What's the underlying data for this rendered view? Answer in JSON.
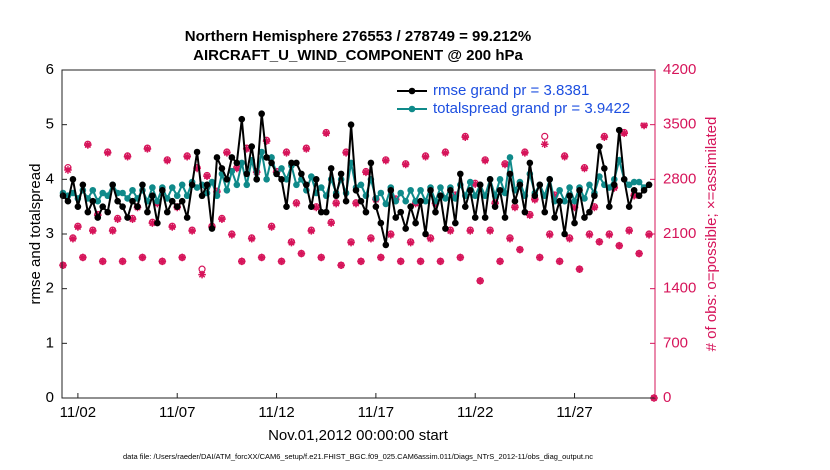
{
  "chart_data": {
    "type": "line",
    "title": "Northern Hemisphere 276553 / 278749 = 99.212%",
    "subtitle": "AIRCRAFT_U_WIND_COMPONENT @ 200 hPa",
    "xlabel": "Nov.01,2012 00:00:00 start",
    "ylabel": "rmse and totalspread",
    "y2label": "# of obs: o=possible; ×=assimilated",
    "footnote": "data file: /Users/raeder/DAI/ATM_forcXX/CAM6_setup/f.e21.FHIST_BGC.f09_025.CAM6assim.011/Diags_NTrS_2012-11/obs_diag_output.nc",
    "x": [
      1.25,
      1.5,
      1.75,
      2,
      2.25,
      2.5,
      2.75,
      3,
      3.25,
      3.5,
      3.75,
      4,
      4.25,
      4.5,
      4.75,
      5,
      5.25,
      5.5,
      5.75,
      6,
      6.25,
      6.5,
      6.75,
      7,
      7.25,
      7.5,
      7.75,
      8,
      8.25,
      8.5,
      8.75,
      9,
      9.25,
      9.5,
      9.75,
      10,
      10.25,
      10.5,
      10.75,
      11,
      11.25,
      11.5,
      11.75,
      12,
      12.25,
      12.5,
      12.75,
      13,
      13.25,
      13.5,
      13.75,
      14,
      14.25,
      14.5,
      14.75,
      15,
      15.25,
      15.5,
      15.75,
      16,
      16.25,
      16.5,
      16.75,
      17,
      17.25,
      17.5,
      17.75,
      18,
      18.25,
      18.5,
      18.75,
      19,
      19.25,
      19.5,
      19.75,
      20,
      20.25,
      20.5,
      20.75,
      21,
      21.25,
      21.5,
      21.75,
      22,
      22.25,
      22.5,
      22.75,
      23,
      23.25,
      23.5,
      23.75,
      24,
      24.25,
      24.5,
      24.75,
      25,
      25.25,
      25.5,
      25.75,
      26,
      26.25,
      26.5,
      26.75,
      27,
      27.25,
      27.5,
      27.75,
      28,
      28.25,
      28.5,
      28.75,
      29,
      29.25,
      29.5,
      29.75,
      30,
      30.25,
      30.5,
      30.75,
      31
    ],
    "xlim": [
      1.2,
      31.05
    ],
    "xticks": [
      {
        "value": 2,
        "label": "11/02"
      },
      {
        "value": 7,
        "label": "11/07"
      },
      {
        "value": 12,
        "label": "11/12"
      },
      {
        "value": 17,
        "label": "11/17"
      },
      {
        "value": 22,
        "label": "11/22"
      },
      {
        "value": 27,
        "label": "11/27"
      }
    ],
    "ylim": [
      0,
      6
    ],
    "yticks": [
      0,
      1,
      2,
      3,
      4,
      5,
      6
    ],
    "y2lim": [
      0,
      4200
    ],
    "y2ticks": [
      0,
      700,
      1400,
      2100,
      2800,
      3500,
      4200
    ],
    "legend": "top-right",
    "legend_text_color": "#1d4fe0",
    "series": [
      {
        "name": "rmse grand pr = 3.8381",
        "color": "#000000",
        "marker": "dot",
        "values": [
          3.7,
          3.6,
          4.0,
          3.5,
          3.9,
          3.4,
          3.6,
          3.3,
          3.5,
          3.4,
          3.9,
          3.6,
          3.5,
          3.3,
          3.6,
          3.5,
          3.9,
          3.4,
          3.7,
          3.2,
          3.8,
          3.4,
          3.6,
          3.5,
          3.6,
          3.3,
          3.9,
          4.5,
          3.7,
          3.9,
          3.1,
          4.4,
          4.2,
          4.0,
          4.4,
          4.3,
          5.1,
          4.1,
          4.6,
          4.0,
          5.2,
          4.4,
          4.3,
          4.1,
          4.0,
          3.5,
          4.3,
          4.3,
          4.1,
          3.9,
          3.5,
          4.0,
          3.4,
          3.4,
          4.2,
          3.7,
          4.1,
          3.6,
          5.0,
          3.8,
          3.6,
          3.4,
          4.3,
          3.5,
          3.2,
          2.8,
          3.8,
          3.3,
          3.4,
          3.1,
          3.5,
          3.2,
          3.6,
          3.0,
          3.8,
          3.4,
          3.7,
          3.1,
          3.8,
          3.2,
          4.1,
          3.5,
          3.8,
          3.3,
          3.9,
          3.3,
          4.0,
          3.5,
          3.8,
          3.3,
          4.1,
          3.6,
          3.9,
          3.4,
          4.3,
          3.7,
          3.9,
          3.4,
          4.0,
          3.3,
          3.6,
          3.0,
          3.7,
          3.2,
          3.8,
          3.3,
          3.4,
          3.7,
          4.6,
          4.2,
          3.5,
          3.9,
          4.9,
          4.0,
          3.5,
          3.8,
          3.7,
          3.8,
          3.9,
          null
        ]
      },
      {
        "name": "totalspread grand pr = 3.9422",
        "color": "#0f8a8a",
        "marker": "dot",
        "values": [
          3.75,
          3.7,
          3.75,
          3.65,
          3.8,
          3.65,
          3.8,
          3.6,
          3.75,
          3.7,
          3.9,
          3.75,
          3.75,
          3.65,
          3.8,
          3.65,
          3.8,
          3.6,
          3.85,
          3.6,
          3.85,
          3.65,
          3.85,
          3.7,
          3.9,
          3.7,
          3.95,
          3.85,
          3.9,
          3.75,
          3.95,
          3.7,
          4.1,
          3.8,
          4.15,
          3.9,
          4.3,
          3.9,
          4.35,
          4.0,
          4.5,
          4.0,
          4.4,
          4.1,
          4.2,
          4.0,
          4.25,
          3.9,
          4.0,
          3.8,
          4.05,
          3.75,
          3.85,
          3.7,
          4.0,
          3.75,
          4.0,
          3.75,
          4.3,
          3.85,
          3.9,
          3.7,
          4.0,
          3.65,
          3.75,
          3.55,
          3.85,
          3.6,
          3.75,
          3.6,
          3.8,
          3.6,
          3.8,
          3.6,
          3.85,
          3.6,
          3.85,
          3.65,
          3.85,
          3.65,
          3.9,
          3.7,
          3.95,
          3.7,
          3.9,
          3.7,
          4.0,
          3.7,
          4.0,
          3.75,
          4.4,
          3.8,
          3.95,
          3.7,
          4.1,
          3.75,
          3.9,
          3.7,
          4.0,
          3.6,
          3.8,
          3.6,
          3.85,
          3.6,
          3.85,
          3.65,
          3.9,
          3.75,
          4.05,
          3.9,
          3.85,
          4.0,
          4.35,
          4.0,
          3.9,
          3.95,
          3.95,
          3.85,
          3.9,
          null
        ]
      },
      {
        "name": "possible",
        "color": "#d6145a",
        "marker": "circle",
        "axis": "y2",
        "values": [
          1700,
          2950,
          2050,
          2200,
          1800,
          3250,
          2150,
          2350,
          1750,
          3150,
          2150,
          2300,
          1750,
          3100,
          2300,
          2450,
          1800,
          3200,
          2250,
          2500,
          1750,
          3050,
          2200,
          2450,
          1800,
          3100,
          2150,
          2950,
          1650,
          2850,
          2200,
          2650,
          2300,
          3150,
          2100,
          2950,
          1750,
          3200,
          2050,
          2900,
          1800,
          3300,
          2200,
          2900,
          1750,
          3150,
          2000,
          2500,
          1850,
          3200,
          2150,
          2450,
          1800,
          3400,
          2250,
          2500,
          1700,
          3150,
          2000,
          2500,
          1750,
          2900,
          2050,
          2550,
          1800,
          3050,
          2100,
          2550,
          1750,
          3000,
          2000,
          2500,
          1750,
          3100,
          2050,
          2500,
          1750,
          3150,
          2150,
          2600,
          1800,
          3350,
          2150,
          2750,
          1500,
          3050,
          2150,
          2500,
          1750,
          3000,
          2050,
          2450,
          1900,
          3150,
          2350,
          2550,
          1800,
          3350,
          2100,
          2600,
          1750,
          3100,
          2050,
          2450,
          1650,
          2950,
          2100,
          2450,
          2000,
          3350,
          2100,
          2700,
          1950,
          3400,
          2150,
          2600,
          1850,
          3500,
          2100,
          0
        ]
      },
      {
        "name": "assimilated",
        "color": "#d6145a",
        "marker": "asterisk",
        "axis": "y2",
        "values": [
          1700,
          2920,
          2040,
          2190,
          1800,
          3240,
          2140,
          2340,
          1750,
          3140,
          2140,
          2290,
          1750,
          3090,
          2290,
          2440,
          1800,
          3190,
          2240,
          2490,
          1750,
          3040,
          2190,
          2440,
          1800,
          3090,
          2140,
          2940,
          1580,
          2840,
          2190,
          2640,
          2290,
          3140,
          2090,
          2940,
          1750,
          3190,
          2040,
          2890,
          1800,
          3290,
          2190,
          2890,
          1750,
          3140,
          1990,
          2490,
          1850,
          3190,
          2140,
          2440,
          1800,
          3390,
          2240,
          2490,
          1700,
          3140,
          1990,
          2490,
          1750,
          2890,
          2040,
          2540,
          1800,
          3040,
          2090,
          2540,
          1750,
          2990,
          1990,
          2490,
          1750,
          3090,
          2040,
          2490,
          1750,
          3140,
          2140,
          2590,
          1800,
          3340,
          2140,
          2740,
          1500,
          3040,
          2140,
          2490,
          1750,
          2990,
          2040,
          2440,
          1900,
          3140,
          2340,
          2540,
          1800,
          3250,
          2090,
          2590,
          1750,
          3090,
          2040,
          2440,
          1650,
          2940,
          2090,
          2440,
          2000,
          3340,
          2090,
          2690,
          1950,
          3390,
          2140,
          2590,
          1850,
          3490,
          2090,
          0
        ]
      }
    ]
  }
}
